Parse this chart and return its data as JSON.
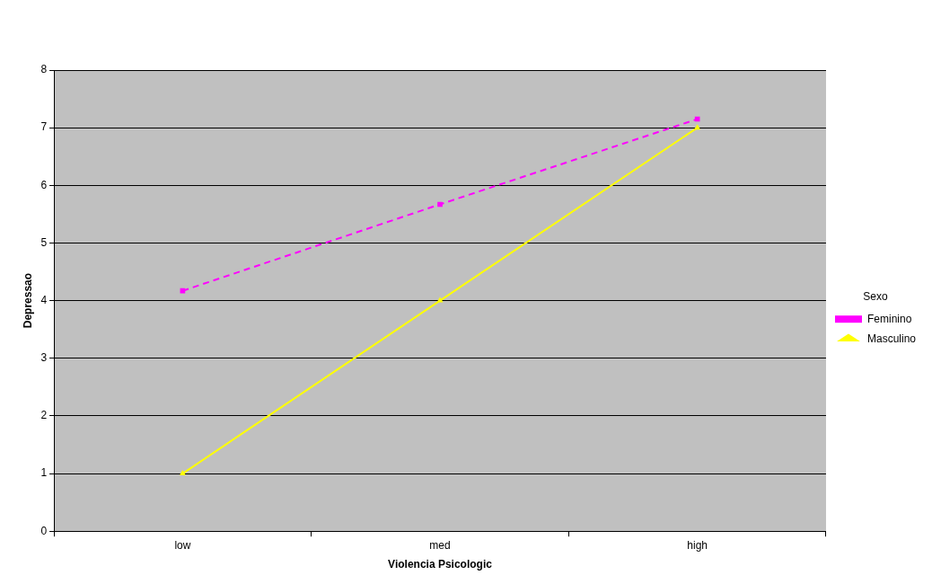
{
  "chart_data": {
    "type": "line",
    "xlabel": "Violencia Psicologic",
    "ylabel": "Depressao",
    "legend_title": "Sexo",
    "categories": [
      "low",
      "med",
      "high"
    ],
    "series": [
      {
        "name": "Feminino",
        "color": "#ff00ff",
        "values": [
          4.17,
          5.67,
          7.15
        ],
        "marker": "square",
        "line_style": "dashed"
      },
      {
        "name": "Masculino",
        "color": "#ffff00",
        "values": [
          1,
          4,
          7
        ],
        "marker": "triangle",
        "line_style": "solid"
      }
    ],
    "ylim": [
      0,
      8
    ],
    "yticks": [
      0,
      1,
      2,
      3,
      4,
      5,
      6,
      7,
      8
    ],
    "grid": "y",
    "legend": "right"
  }
}
